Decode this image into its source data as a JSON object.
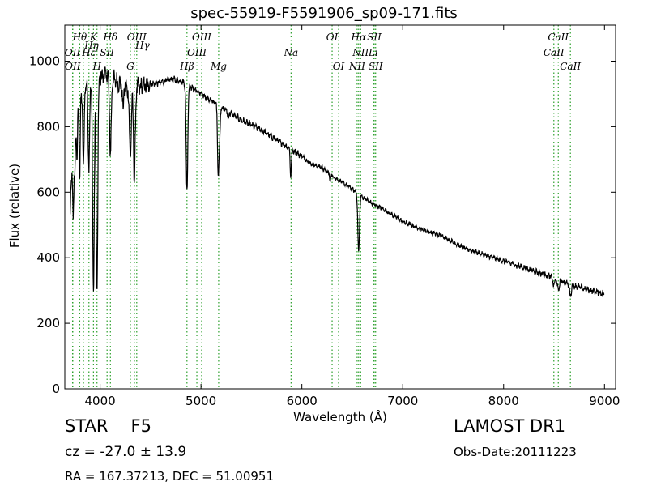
{
  "header": {
    "title": "spec-55919-F5591906_sp09-171.fits"
  },
  "info": {
    "object_type": "STAR",
    "subclass": "F5",
    "cz": "cz = -27.0 ± 13.9",
    "radec": "RA = 167.37213, DEC = 51.00951",
    "survey": "LAMOST DR1",
    "obs_date": "Obs-Date:20111223"
  },
  "colors": {
    "line_marker": "#2ca02c",
    "spectrum": "#000000"
  },
  "chart_data": {
    "type": "line",
    "title": "spec-55919-F5591906_sp09-171.fits",
    "xlabel": "Wavelength (Å)",
    "ylabel": "Flux (relative)",
    "xlim": [
      3650,
      9110
    ],
    "ylim": [
      0,
      1110
    ],
    "xticks": [
      4000,
      5000,
      6000,
      7000,
      8000,
      9000
    ],
    "yticks": [
      0,
      200,
      400,
      600,
      800,
      1000
    ],
    "grid": false,
    "series": [
      {
        "continuum": [
          [
            3700,
            540
          ],
          [
            3730,
            700
          ],
          [
            3760,
            820
          ],
          [
            3800,
            880
          ],
          [
            3850,
            920
          ],
          [
            3900,
            930
          ],
          [
            3950,
            940
          ],
          [
            4000,
            950
          ],
          [
            4050,
            960
          ],
          [
            4100,
            950
          ],
          [
            4200,
            930
          ],
          [
            4300,
            915
          ],
          [
            4400,
            920
          ],
          [
            4500,
            930
          ],
          [
            4600,
            935
          ],
          [
            4700,
            945
          ],
          [
            4800,
            940
          ],
          [
            4900,
            920
          ],
          [
            5000,
            900
          ],
          [
            5100,
            880
          ],
          [
            5200,
            860
          ],
          [
            5300,
            840
          ],
          [
            5400,
            820
          ],
          [
            5500,
            805
          ],
          [
            5600,
            790
          ],
          [
            5700,
            770
          ],
          [
            5800,
            750
          ],
          [
            5900,
            730
          ],
          [
            6000,
            710
          ],
          [
            6100,
            685
          ],
          [
            6200,
            675
          ],
          [
            6300,
            650
          ],
          [
            6400,
            630
          ],
          [
            6500,
            610
          ],
          [
            6600,
            585
          ],
          [
            6700,
            565
          ],
          [
            6800,
            550
          ],
          [
            6900,
            530
          ],
          [
            7000,
            510
          ],
          [
            7200,
            485
          ],
          [
            7400,
            465
          ],
          [
            7600,
            430
          ],
          [
            7800,
            410
          ],
          [
            8000,
            390
          ],
          [
            8200,
            370
          ],
          [
            8400,
            350
          ],
          [
            8600,
            325
          ],
          [
            8800,
            305
          ],
          [
            9000,
            290
          ]
        ],
        "absorptions": [
          [
            3734,
            540,
            6
          ],
          [
            3750,
            650,
            5
          ],
          [
            3771,
            700,
            5
          ],
          [
            3798,
            650,
            5
          ],
          [
            3835,
            660,
            6
          ],
          [
            3889,
            680,
            7
          ],
          [
            3934,
            290,
            8
          ],
          [
            3969,
            300,
            8
          ],
          [
            4102,
            710,
            8
          ],
          [
            4227,
            850,
            6
          ],
          [
            4300,
            720,
            10
          ],
          [
            4340,
            630,
            8
          ],
          [
            4861,
            605,
            8
          ],
          [
            5167,
            760,
            6
          ],
          [
            5173,
            745,
            6
          ],
          [
            5184,
            755,
            6
          ],
          [
            5270,
            820,
            5
          ],
          [
            5890,
            650,
            6
          ],
          [
            6280,
            635,
            5
          ],
          [
            6563,
            415,
            8
          ],
          [
            8498,
            315,
            8
          ],
          [
            8542,
            300,
            9
          ],
          [
            8662,
            285,
            9
          ]
        ]
      }
    ],
    "line_markers": [
      {
        "label": "Hθ",
        "wl": 3798,
        "pos": "top"
      },
      {
        "label": "OII",
        "wl": 3727,
        "pos": "mid"
      },
      {
        "label": "OII",
        "wl": 3729,
        "pos": "low"
      },
      {
        "label": "Hη",
        "wl": 3835,
        "pos": "sub"
      },
      {
        "label": "K",
        "wl": 3934,
        "pos": "top"
      },
      {
        "label": "Hε",
        "wl": 3889,
        "pos": "mid"
      },
      {
        "label": "H",
        "wl": 3969,
        "pos": "low"
      },
      {
        "label": "SII",
        "wl": 4069,
        "pos": "mid"
      },
      {
        "label": "Hδ",
        "wl": 4102,
        "pos": "top"
      },
      {
        "label": "OIII",
        "wl": 4363,
        "pos": "top"
      },
      {
        "label": "Hγ",
        "wl": 4340,
        "pos": "sub"
      },
      {
        "label": "G",
        "wl": 4300,
        "pos": "low"
      },
      {
        "label": "OIII",
        "wl": 5007,
        "pos": "top"
      },
      {
        "label": "OIII",
        "wl": 4959,
        "pos": "mid"
      },
      {
        "label": "Hβ",
        "wl": 4861,
        "pos": "low"
      },
      {
        "label": "Mg",
        "wl": 5175,
        "pos": "low"
      },
      {
        "label": "Na",
        "wl": 5893,
        "pos": "mid"
      },
      {
        "label": "OI",
        "wl": 6300,
        "pos": "top"
      },
      {
        "label": "OI",
        "wl": 6364,
        "pos": "low"
      },
      {
        "label": "Hα",
        "wl": 6563,
        "pos": "top"
      },
      {
        "label": "SII",
        "wl": 6717,
        "pos": "top"
      },
      {
        "label": "NII",
        "wl": 6583,
        "pos": "mid"
      },
      {
        "label": "Li",
        "wl": 6708,
        "pos": "mid"
      },
      {
        "label": "NII",
        "wl": 6548,
        "pos": "low"
      },
      {
        "label": "SII",
        "wl": 6731,
        "pos": "low"
      },
      {
        "label": "CaII",
        "wl": 8542,
        "pos": "top"
      },
      {
        "label": "CaII",
        "wl": 8498,
        "pos": "mid"
      },
      {
        "label": "CaII",
        "wl": 8662,
        "pos": "low"
      }
    ]
  }
}
